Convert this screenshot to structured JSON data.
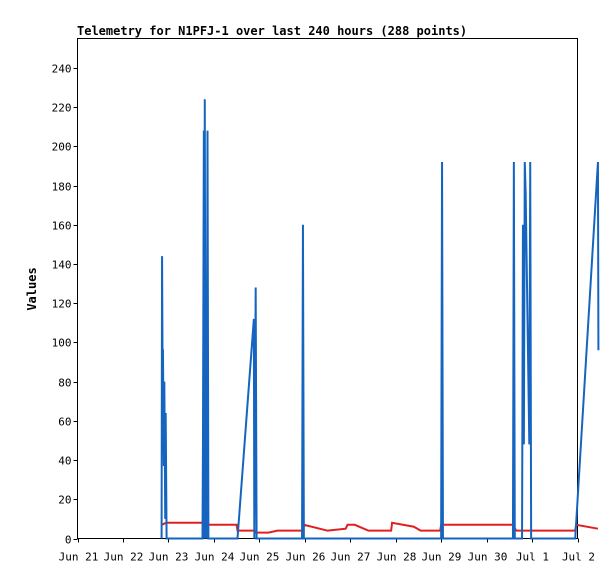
{
  "chart_data": {
    "type": "line",
    "title": "Telemetry for N1PFJ-1 over last 240 hours (288 points)",
    "xlabel": "",
    "ylabel": "Values",
    "x_unit": "day",
    "xlim": [
      "Jun 21",
      "Jul 2"
    ],
    "x_ticks": [
      "Jun 21",
      "Jun 22",
      "Jun 23",
      "Jun 24",
      "Jun 25",
      "Jun 26",
      "Jun 27",
      "Jun 28",
      "Jun 29",
      "Jun 30",
      "Jul 1",
      "Jul 2"
    ],
    "ylim": [
      0,
      255
    ],
    "y_ticks": [
      0,
      20,
      40,
      60,
      80,
      100,
      120,
      140,
      160,
      180,
      200,
      220,
      240
    ],
    "grid": false,
    "legend": "none",
    "series": [
      {
        "color": "#1565c0",
        "points": [
          [
            1.85,
            0
          ],
          [
            1.86,
            144
          ],
          [
            1.87,
            97
          ],
          [
            1.88,
            96
          ],
          [
            1.9,
            37
          ],
          [
            1.91,
            80
          ],
          [
            1.93,
            10
          ],
          [
            1.94,
            64
          ],
          [
            1.96,
            0
          ],
          [
            2.75,
            0
          ],
          [
            2.76,
            48
          ],
          [
            2.78,
            208
          ],
          [
            2.79,
            0
          ],
          [
            2.8,
            224
          ],
          [
            2.82,
            0
          ],
          [
            2.83,
            112
          ],
          [
            2.84,
            0
          ],
          [
            2.86,
            208
          ],
          [
            2.88,
            0
          ],
          [
            3.52,
            0
          ],
          [
            3.88,
            112
          ],
          [
            3.89,
            0
          ],
          [
            3.92,
            128
          ],
          [
            3.94,
            0
          ],
          [
            4.94,
            0
          ],
          [
            4.96,
            160
          ],
          [
            4.98,
            0
          ],
          [
            8.0,
            0
          ],
          [
            8.02,
            192
          ],
          [
            8.04,
            0
          ],
          [
            9.58,
            0
          ],
          [
            9.6,
            192
          ],
          [
            9.62,
            0
          ],
          [
            9.78,
            0
          ],
          [
            9.8,
            160
          ],
          [
            9.82,
            48
          ],
          [
            9.84,
            192
          ],
          [
            9.86,
            176
          ],
          [
            9.88,
            144
          ],
          [
            9.9,
            112
          ],
          [
            9.92,
            80
          ],
          [
            9.94,
            48
          ],
          [
            9.96,
            192
          ],
          [
            9.98,
            0
          ],
          [
            10.95,
            0
          ],
          [
            11.45,
            192
          ],
          [
            11.46,
            96
          ]
        ]
      },
      {
        "color": "#e02020",
        "points": [
          [
            1.85,
            7
          ],
          [
            1.95,
            8
          ],
          [
            2.75,
            8
          ],
          [
            2.8,
            7
          ],
          [
            3.5,
            7
          ],
          [
            3.52,
            4
          ],
          [
            3.9,
            4
          ],
          [
            3.92,
            3
          ],
          [
            4.2,
            3
          ],
          [
            4.4,
            4
          ],
          [
            4.96,
            4
          ],
          [
            4.98,
            7
          ],
          [
            5.5,
            4
          ],
          [
            5.9,
            5
          ],
          [
            5.94,
            7
          ],
          [
            6.1,
            7
          ],
          [
            6.4,
            4
          ],
          [
            6.9,
            4
          ],
          [
            6.92,
            8
          ],
          [
            7.4,
            6
          ],
          [
            7.55,
            4
          ],
          [
            7.98,
            4
          ],
          [
            8.0,
            7
          ],
          [
            9.58,
            7
          ],
          [
            9.65,
            4
          ],
          [
            10.95,
            4
          ],
          [
            10.97,
            7
          ],
          [
            11.45,
            5
          ]
        ]
      }
    ]
  }
}
